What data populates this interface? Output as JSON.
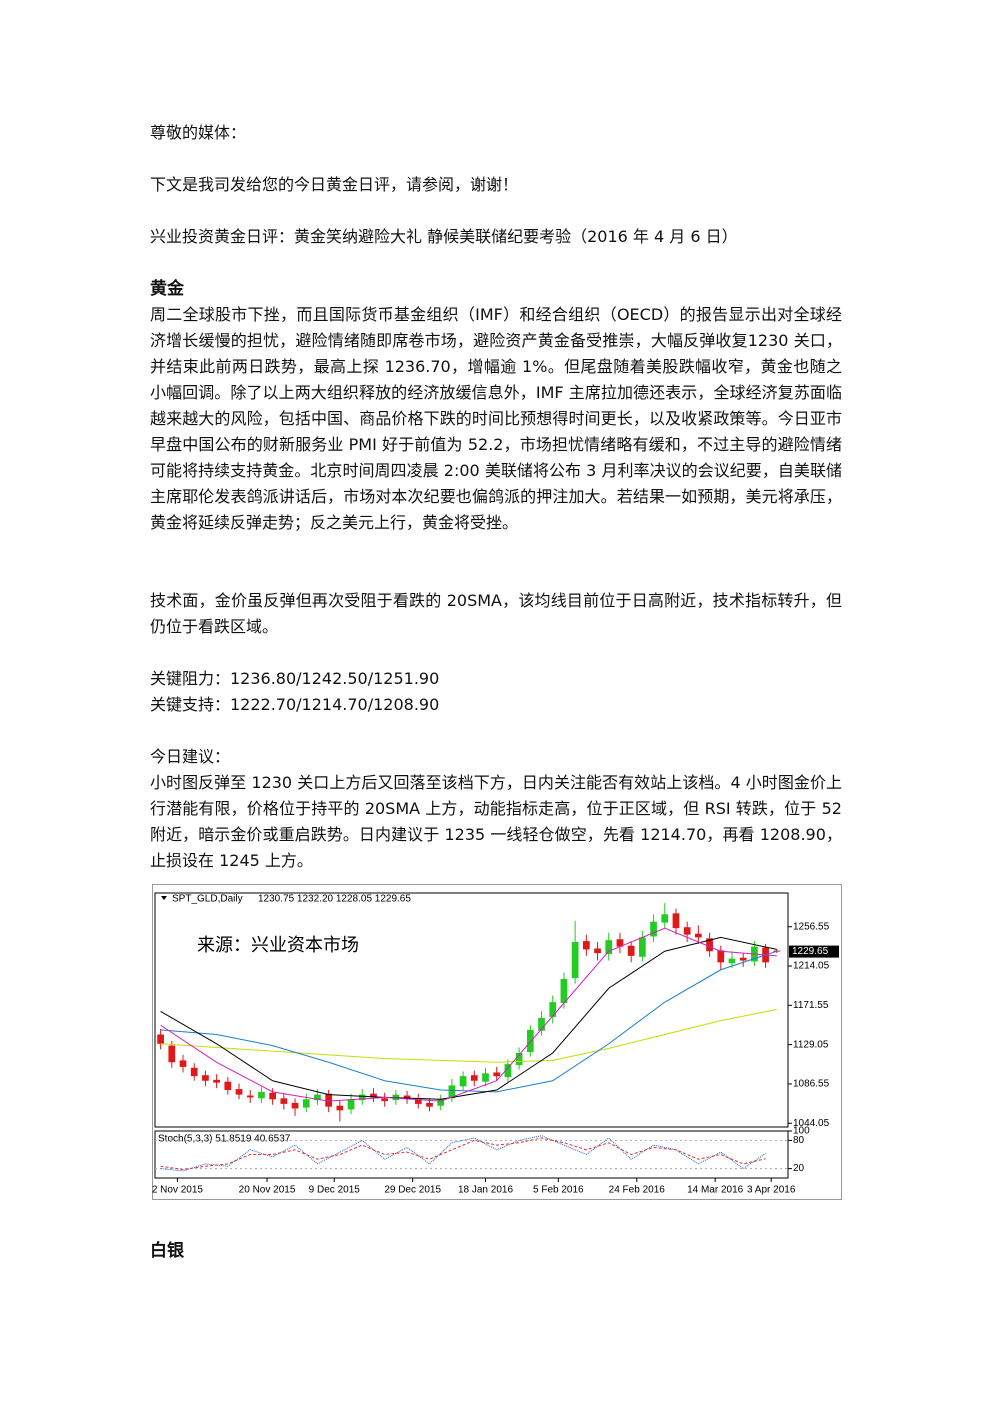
{
  "greeting": "尊敬的媒体：",
  "intro": "下文是我司发给您的今日黄金日评，请参阅，谢谢！",
  "headline": "兴业投资黄金日评：黄金笑纳避险大礼 静候美联储纪要考验（2016 年 4 月 6 日）",
  "gold": {
    "heading": "黄金",
    "paragraph": "周二全球股市下挫，而且国际货币基金组织（IMF）和经合组织（OECD）的报告显示出对全球经济增长缓慢的担忧，避险情绪随即席卷市场，避险资产黄金备受推崇，大幅反弹收复1230 关口，并结束此前两日跌势，最高上探 1236.70，增幅逾 1%。但尾盘随着美股跌幅收窄，黄金也随之小幅回调。除了以上两大组织释放的经济放缓信息外，IMF 主席拉加德还表示，全球经济复苏面临越来越大的风险，包括中国、商品价格下跌的时间比预想得时间更长，以及收紧政策等。今日亚市早盘中国公布的财新服务业 PMI 好于前值为 52.2，市场担忧情绪略有缓和，不过主导的避险情绪可能将持续支持黄金。北京时间周四凌晨 2:00 美联储将公布 3 月利率决议的会议纪要，自美联储主席耶伦发表鸽派讲话后，市场对本次纪要也偏鸽派的押注加大。若结果一如预期，美元将承压，黄金将延续反弹走势；反之美元上行，黄金将受挫。",
    "technical": "技术面，金价虽反弹但再次受阻于看跌的 20SMA，该均线目前位于日高附近，技术指标转升，但仍位于看跌区域。",
    "resistance": "关键阻力：1236.80/1242.50/1251.90",
    "support": "关键支持：1222.70/1214.70/1208.90",
    "advice_heading": "今日建议：",
    "advice": "小时图反弹至 1230 关口上方后又回落至该档下方，日内关注能否有效站上该档。4 小时图金价上行潜能有限，价格位于持平的 20SMA 上方，动能指标走高，位于正区域，但 RSI 转跌，位于 52 附近，暗示金价或重启跌势。日内建议于 1235 一线轻仓做空，先看 1214.70，再看 1208.90，止损设在 1245 上方。"
  },
  "chart_data": {
    "type": "candlestick",
    "title": "SPT_GLD,Daily",
    "ohlc_label": "1230.75 1232.20 1228.05 1229.65",
    "annotation": "来源：兴业资本市场",
    "up_color": "#22cc22",
    "down_color": "#e01818",
    "x": [
      0,
      2,
      4,
      6,
      8,
      10,
      12,
      14,
      16,
      18,
      20,
      22,
      24,
      26,
      28,
      30,
      32,
      34,
      36,
      38,
      40,
      42,
      44,
      46,
      48,
      50,
      52,
      54,
      56,
      58,
      60,
      62,
      64,
      66,
      68,
      70,
      72,
      74,
      76,
      78,
      80,
      82,
      84,
      86,
      88,
      90,
      92,
      94,
      96,
      98,
      100,
      102,
      104,
      106,
      108,
      110
    ],
    "open": [
      1140,
      1128,
      1112,
      1104,
      1096,
      1091,
      1089,
      1081,
      1074,
      1071,
      1077,
      1071,
      1066,
      1061,
      1069,
      1076,
      1063,
      1059,
      1069,
      1076,
      1071,
      1069,
      1074,
      1071,
      1066,
      1063,
      1071,
      1084,
      1096,
      1089,
      1099,
      1094,
      1107,
      1121,
      1144,
      1159,
      1174,
      1201,
      1241,
      1233,
      1227,
      1243,
      1236,
      1224,
      1246,
      1261,
      1271,
      1256,
      1249,
      1244,
      1231,
      1217,
      1223,
      1219,
      1234,
      1230.75
    ],
    "high": [
      1146,
      1133,
      1118,
      1109,
      1101,
      1097,
      1094,
      1087,
      1080,
      1083,
      1082,
      1076,
      1071,
      1076,
      1081,
      1080,
      1068,
      1076,
      1081,
      1082,
      1077,
      1080,
      1079,
      1076,
      1071,
      1075,
      1092,
      1100,
      1101,
      1104,
      1105,
      1113,
      1126,
      1150,
      1165,
      1182,
      1207,
      1263,
      1248,
      1240,
      1250,
      1250,
      1241,
      1252,
      1270,
      1282,
      1276,
      1262,
      1258,
      1250,
      1236,
      1230,
      1228,
      1241,
      1238,
      1232.2
    ],
    "low": [
      1124,
      1104,
      1099,
      1090,
      1084,
      1082,
      1075,
      1070,
      1066,
      1066,
      1064,
      1059,
      1052,
      1056,
      1064,
      1056,
      1046,
      1054,
      1064,
      1067,
      1062,
      1064,
      1065,
      1060,
      1057,
      1058,
      1067,
      1080,
      1084,
      1084,
      1090,
      1089,
      1102,
      1116,
      1139,
      1152,
      1168,
      1195,
      1225,
      1220,
      1220,
      1228,
      1218,
      1219,
      1240,
      1255,
      1248,
      1240,
      1238,
      1224,
      1210,
      1212,
      1213,
      1214,
      1212,
      1228.05
    ],
    "close": [
      1130,
      1110,
      1105,
      1095,
      1090,
      1088,
      1080,
      1075,
      1072,
      1078,
      1070,
      1065,
      1060,
      1070,
      1075,
      1062,
      1058,
      1070,
      1075,
      1072,
      1068,
      1075,
      1070,
      1065,
      1062,
      1070,
      1085,
      1095,
      1090,
      1098,
      1095,
      1108,
      1120,
      1145,
      1158,
      1175,
      1200,
      1240,
      1232,
      1228,
      1242,
      1235,
      1225,
      1245,
      1262,
      1270,
      1255,
      1248,
      1245,
      1230,
      1218,
      1222,
      1220,
      1235,
      1218,
      1229.65
    ],
    "lines": [
      {
        "color": "#c8dc00",
        "x": [
          0,
          10,
          20,
          30,
          40,
          50,
          60,
          70,
          80,
          90,
          100,
          110
        ],
        "values": [
          1130,
          1126,
          1122,
          1118,
          1114,
          1112,
          1110,
          1112,
          1125,
          1140,
          1155,
          1167
        ]
      },
      {
        "color": "#1a7fc8",
        "x": [
          0,
          10,
          20,
          30,
          40,
          50,
          60,
          70,
          80,
          90,
          100,
          110
        ],
        "values": [
          1145,
          1140,
          1128,
          1110,
          1090,
          1080,
          1078,
          1090,
          1130,
          1175,
          1210,
          1230
        ]
      },
      {
        "color": "#000000",
        "x": [
          0,
          10,
          20,
          30,
          40,
          50,
          60,
          70,
          80,
          90,
          100,
          110
        ],
        "values": [
          1165,
          1130,
          1090,
          1075,
          1072,
          1070,
          1080,
          1120,
          1190,
          1230,
          1245,
          1232
        ]
      },
      {
        "color": "#d020c0",
        "x": [
          0,
          10,
          20,
          30,
          40,
          50,
          60,
          70,
          80,
          90,
          100,
          110
        ],
        "values": [
          1150,
          1110,
          1078,
          1068,
          1072,
          1068,
          1090,
          1160,
          1230,
          1255,
          1230,
          1225
        ]
      }
    ],
    "xlim": [
      -1,
      112
    ],
    "ylim": [
      1040,
      1293
    ],
    "yticks": [
      1044.05,
      1086.55,
      1129.05,
      1171.55,
      1214.05,
      1256.55
    ],
    "xticks": [
      {
        "value": 3,
        "label": "2 Nov 2015"
      },
      {
        "value": 19,
        "label": "20 Nov 2015"
      },
      {
        "value": 31,
        "label": "9 Dec 2015"
      },
      {
        "value": 45,
        "label": "29 Dec 2015"
      },
      {
        "value": 58,
        "label": "18 Jan 2016"
      },
      {
        "value": 71,
        "label": "5 Feb 2016"
      },
      {
        "value": 85,
        "label": "24 Feb 2016"
      },
      {
        "value": 99,
        "label": "14 Mar 2016"
      },
      {
        "value": 109,
        "label": "3 Apr 2016"
      }
    ],
    "stoch": {
      "label": "Stoch(5,3,3) 51.8519 40.6537",
      "ylim": [
        0,
        100
      ],
      "yticks": [
        20,
        80,
        100
      ],
      "x": [
        0,
        4,
        8,
        12,
        16,
        20,
        24,
        28,
        32,
        36,
        40,
        44,
        48,
        52,
        56,
        60,
        64,
        68,
        72,
        76,
        80,
        84,
        88,
        92,
        96,
        100,
        104,
        108
      ],
      "series": [
        {
          "color": "#1a5fd0",
          "values": [
            20,
            15,
            30,
            25,
            60,
            45,
            70,
            30,
            55,
            80,
            40,
            65,
            30,
            75,
            85,
            60,
            80,
            90,
            70,
            50,
            85,
            40,
            70,
            60,
            30,
            55,
            20,
            52
          ]
        },
        {
          "color": "#e03030",
          "values": [
            25,
            18,
            25,
            30,
            50,
            50,
            60,
            40,
            50,
            70,
            50,
            55,
            40,
            60,
            80,
            70,
            75,
            85,
            75,
            60,
            75,
            50,
            65,
            60,
            40,
            50,
            30,
            41
          ]
        }
      ]
    }
  },
  "silver": {
    "heading": "白银"
  }
}
